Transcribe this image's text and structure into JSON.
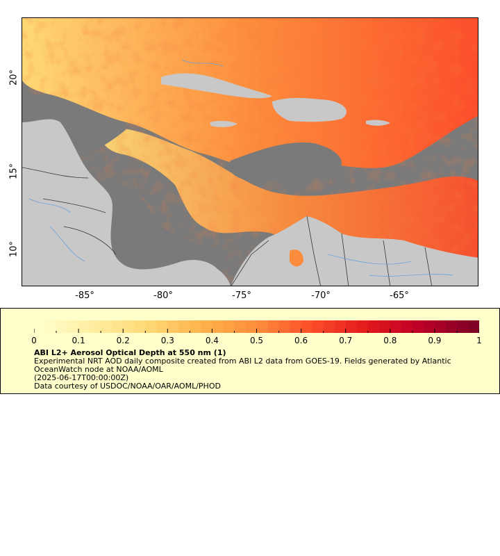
{
  "map": {
    "lat_labels": [
      "20°",
      "15°",
      "10°"
    ],
    "lon_labels": [
      "-85°",
      "-80°",
      "-75°",
      "-70°",
      "-65°"
    ],
    "colors": {
      "ocean_nodata": "#7a7a7a",
      "land": "#c8c8c8",
      "rivers": "#6aa0d8",
      "borders": "#333333"
    }
  },
  "legend": {
    "ticks": [
      "0",
      "0.1",
      "0.2",
      "0.3",
      "0.4",
      "0.5",
      "0.6",
      "0.7",
      "0.8",
      "0.9",
      "1"
    ],
    "title": "ABI L2+ Aerosol Optical Depth at 550 nm (1)",
    "line1": "Experimental NRT AOD daily composite created from ABI L2 data from GOES-19. Fields generated by Atlantic OceanWatch node at NOAA/AOML",
    "line2": "(2025-06-17T00:00:00Z)",
    "line3": "Data courtesy of USDOC/NOAA/OAR/AOML/PHOD",
    "colormap": [
      "#ffffcc",
      "#ffeda0",
      "#fed976",
      "#feb24c",
      "#fd8d3c",
      "#fc4e2a",
      "#e31a1c",
      "#bd0026",
      "#800026"
    ],
    "range": [
      0,
      1
    ]
  }
}
